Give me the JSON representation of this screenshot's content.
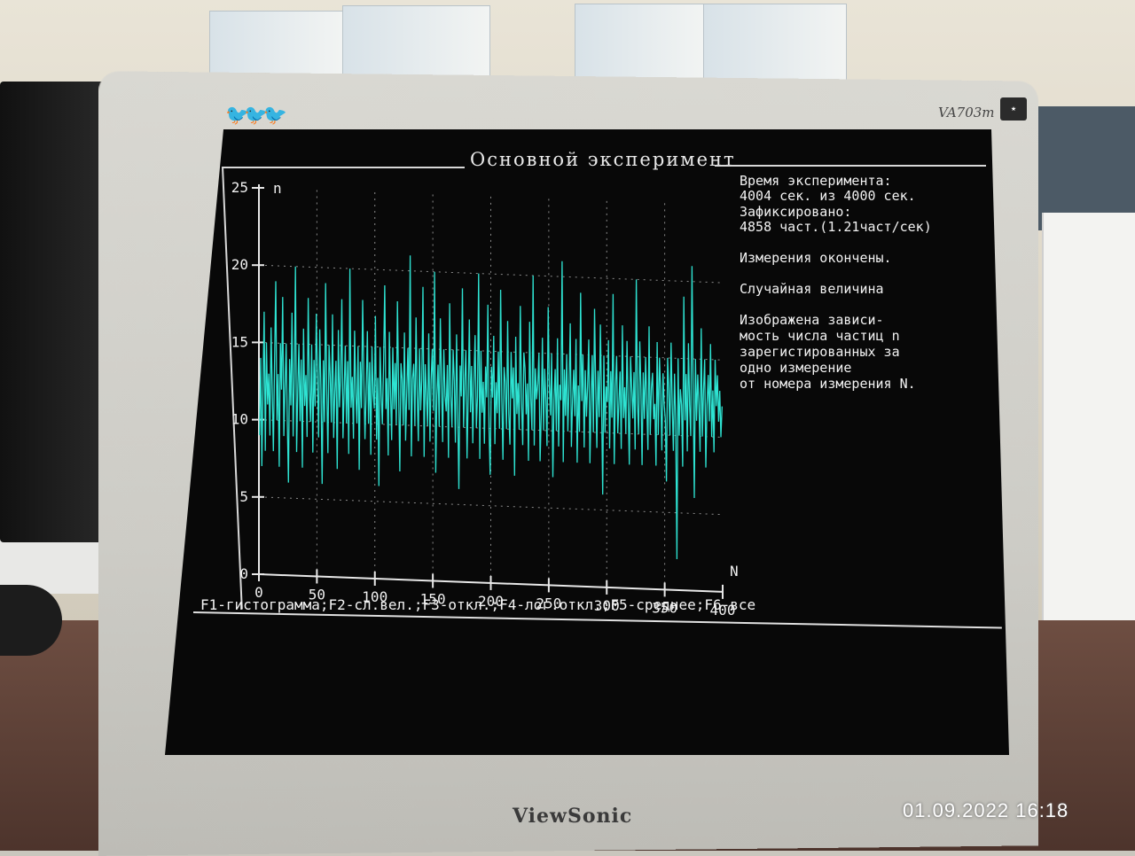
{
  "photo": {
    "monitor_model": "VA703m",
    "monitor_brand": "ViewSonic",
    "timestamp": "01.09.2022  16:18"
  },
  "screen": {
    "title": "Основной эксперимент",
    "info": {
      "time_label": "Время эксперимента:",
      "time_value": "4004 сек. из 4000 сек.",
      "fixed_label": "Зафиксировано:",
      "fixed_value": "4858 част.(1.21част/сек)",
      "status": "Измерения окончены.",
      "mode": "Случайная величина",
      "description_lines": [
        "Изображена зависи-",
        "мость числа частиц n",
        "зарегистированных за",
        "одно измерение",
        "от номера измерения N."
      ]
    },
    "function_keys": "F1-гистограмма;F2-сл.вел.;F3-откл.;F4-лог.откл.;F5-среднее;F6-все"
  },
  "chart_data": {
    "type": "line",
    "ylabel": "n",
    "xlabel": "N",
    "xlim": [
      0,
      400
    ],
    "ylim": [
      0,
      25
    ],
    "x_ticks": [
      "0",
      "50",
      "100",
      "150",
      "200",
      "250",
      "300",
      "350",
      "400"
    ],
    "y_ticks": [
      "0",
      "5",
      "10",
      "15",
      "20",
      "25"
    ],
    "grid": true,
    "color": "#2ee3d2",
    "series": [
      {
        "values": [
          9,
          14,
          7,
          12,
          17,
          8,
          15,
          11,
          13,
          9,
          16,
          12,
          8,
          14,
          19,
          10,
          13,
          7,
          15,
          12,
          18,
          9,
          12,
          15,
          10,
          6,
          14,
          11,
          17,
          9,
          13,
          20,
          8,
          12,
          15,
          10,
          14,
          7,
          16,
          11,
          13,
          9,
          18,
          12,
          10,
          15,
          8,
          14,
          11,
          17,
          13,
          9,
          16,
          12,
          6,
          14,
          10,
          19,
          12,
          8,
          15,
          13,
          10,
          17,
          9,
          12,
          14,
          7,
          16,
          11,
          13,
          18,
          9,
          12,
          15,
          10,
          14,
          8,
          20,
          11,
          13,
          9,
          16,
          12,
          10,
          15,
          7,
          14,
          11,
          18,
          13,
          9,
          12,
          16,
          10,
          14,
          8,
          15,
          12,
          11,
          17,
          9,
          13,
          6,
          15,
          12,
          10,
          14,
          19,
          11,
          13,
          8,
          16,
          12,
          9,
          15,
          11,
          14,
          10,
          18,
          12,
          7,
          14,
          13,
          10,
          16,
          9,
          12,
          15,
          11,
          21,
          8,
          13,
          14,
          10,
          17,
          12,
          9,
          15,
          11,
          13,
          19,
          8,
          14,
          12,
          10,
          16,
          9,
          13,
          15,
          11,
          20,
          7,
          12,
          14,
          10,
          17,
          13,
          9,
          15,
          12,
          11,
          14,
          8,
          18,
          12,
          10,
          15,
          13,
          9,
          16,
          11,
          6,
          14,
          12,
          19,
          10,
          13,
          15,
          8,
          12,
          17,
          11,
          14,
          9,
          13,
          16,
          10,
          12,
          20,
          8,
          15,
          11,
          13,
          9,
          14,
          12,
          18,
          10,
          7,
          14,
          12,
          16,
          9,
          13,
          11,
          15,
          10,
          19,
          12,
          8,
          14,
          13,
          10,
          17,
          11,
          9,
          15,
          12,
          14,
          7,
          16,
          11,
          13,
          10,
          18,
          12,
          9,
          15,
          14,
          11,
          13,
          8,
          17,
          12,
          10,
          20,
          9,
          14,
          12,
          13,
          15,
          8,
          11,
          16,
          10,
          14,
          12,
          9,
          18,
          13,
          11,
          15,
          7,
          12,
          14,
          10,
          16,
          9,
          13,
          12,
          21,
          8,
          14,
          11,
          15,
          10,
          13,
          17,
          9,
          12,
          14,
          11,
          16,
          8,
          13,
          10,
          19,
          12,
          15,
          9,
          14,
          11,
          13,
          16,
          8,
          12,
          15,
          10,
          18,
          13,
          9,
          14,
          11,
          17,
          12,
          6,
          15,
          10,
          13,
          12,
          16,
          9,
          14,
          11,
          19,
          8,
          13,
          15,
          10,
          12,
          14,
          9,
          17,
          11,
          13,
          10,
          16,
          12,
          8,
          15,
          13,
          11,
          14,
          9,
          20,
          12,
          10,
          16,
          13,
          8,
          14,
          11,
          15,
          12,
          9,
          17,
          10,
          13,
          14,
          11,
          12,
          8,
          16,
          10,
          15,
          13,
          9,
          14,
          12,
          11,
          7,
          15,
          13,
          10,
          16,
          12,
          9,
          14,
          11,
          2,
          15,
          10,
          13,
          12,
          8,
          19,
          11,
          14,
          9,
          16,
          12,
          10,
          21,
          13,
          6,
          15,
          11,
          14,
          12,
          9,
          17,
          10,
          13,
          15,
          8,
          12,
          14,
          11,
          16,
          10,
          13,
          9,
          15,
          12,
          14,
          11,
          13,
          10,
          12
        ]
      }
    ]
  }
}
